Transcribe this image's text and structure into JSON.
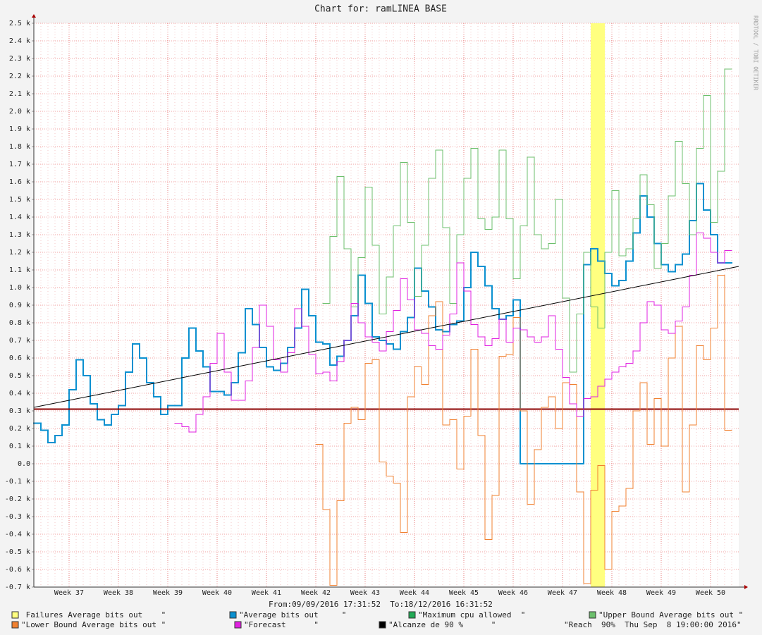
{
  "chart_data": {
    "type": "step",
    "title": "Chart for: ramLINEA BASE",
    "side_label": "RRDTOOL / TOBI OETIKER",
    "footer": "From:09/09/2016 17:31:52  To:18/12/2016 16:31:52",
    "legend_note": "\"Reach  90%  Thu Sep  8 19:00:00 2016\"",
    "grid": true,
    "categories": [
      null,
      null,
      null,
      null,
      null,
      "Week 37",
      null,
      null,
      null,
      null,
      null,
      null,
      "Week 38",
      null,
      null,
      null,
      null,
      null,
      null,
      "Week 39",
      null,
      null,
      null,
      null,
      null,
      null,
      "Week 40",
      null,
      null,
      null,
      null,
      null,
      null,
      "Week 41",
      null,
      null,
      null,
      null,
      null,
      null,
      "Week 42",
      null,
      null,
      null,
      null,
      null,
      null,
      "Week 43",
      null,
      null,
      null,
      null,
      null,
      null,
      "Week 44",
      null,
      null,
      null,
      null,
      null,
      null,
      "Week 45",
      null,
      null,
      null,
      null,
      null,
      null,
      "Week 46",
      null,
      null,
      null,
      null,
      null,
      null,
      "Week 47",
      null,
      null,
      null,
      null,
      null,
      null,
      "Week 48",
      null,
      null,
      null,
      null,
      null,
      null,
      "Week 49",
      null,
      null,
      null,
      null,
      null,
      null,
      "Week 50",
      null,
      null,
      null
    ],
    "ylim": [
      -0.7,
      2.5
    ],
    "yticks": [
      {
        "value": -0.7,
        "label": "-0.7 k"
      },
      {
        "value": -0.6,
        "label": "-0.6 k"
      },
      {
        "value": -0.5,
        "label": "-0.5 k"
      },
      {
        "value": -0.4,
        "label": "-0.4 k"
      },
      {
        "value": -0.3,
        "label": "-0.3 k"
      },
      {
        "value": -0.2,
        "label": "-0.2 k"
      },
      {
        "value": -0.1,
        "label": "-0.1 k"
      },
      {
        "value": 0,
        "label": "0.0"
      },
      {
        "value": 0.1,
        "label": "0.1 k"
      },
      {
        "value": 0.2,
        "label": "0.2 k"
      },
      {
        "value": 0.3,
        "label": "0.3 k"
      },
      {
        "value": 0.4,
        "label": "0.4 k"
      },
      {
        "value": 0.5,
        "label": "0.5 k"
      },
      {
        "value": 0.6,
        "label": "0.6 k"
      },
      {
        "value": 0.7,
        "label": "0.7 k"
      },
      {
        "value": 0.8,
        "label": "0.8 k"
      },
      {
        "value": 0.9,
        "label": "0.9 k"
      },
      {
        "value": 1.0,
        "label": "1.0 k"
      },
      {
        "value": 1.1,
        "label": "1.1 k"
      },
      {
        "value": 1.2,
        "label": "1.2 k"
      },
      {
        "value": 1.3,
        "label": "1.3 k"
      },
      {
        "value": 1.4,
        "label": "1.4 k"
      },
      {
        "value": 1.5,
        "label": "1.5 k"
      },
      {
        "value": 1.6,
        "label": "1.6 k"
      },
      {
        "value": 1.7,
        "label": "1.7 k"
      },
      {
        "value": 1.8,
        "label": "1.8 k"
      },
      {
        "value": 1.9,
        "label": "1.9 k"
      },
      {
        "value": 2.0,
        "label": "2.0 k"
      },
      {
        "value": 2.1,
        "label": "2.1 k"
      },
      {
        "value": 2.2,
        "label": "2.2 k"
      },
      {
        "value": 2.3,
        "label": "2.3 k"
      },
      {
        "value": 2.4,
        "label": "2.4 k"
      },
      {
        "value": 2.5,
        "label": "2.5 k"
      }
    ],
    "series": [
      {
        "name": " Failures Average bits out    \"",
        "color": "#ffff80",
        "kind": "tick",
        "values": [
          null,
          null,
          null,
          null,
          null,
          null,
          null,
          null,
          null,
          null,
          null,
          null,
          null,
          null,
          null,
          null,
          null,
          null,
          null,
          null,
          null,
          null,
          null,
          null,
          null,
          null,
          null,
          null,
          null,
          null,
          null,
          null,
          null,
          null,
          null,
          null,
          null,
          null,
          null,
          null,
          null,
          null,
          null,
          null,
          null,
          null,
          null,
          null,
          null,
          null,
          null,
          null,
          null,
          null,
          null,
          null,
          null,
          null,
          null,
          null,
          null,
          null,
          null,
          null,
          null,
          null,
          null,
          null,
          null,
          null,
          null,
          null,
          null,
          null,
          null,
          null,
          null,
          null,
          null,
          1,
          1,
          null,
          null,
          null,
          null,
          null,
          null,
          null,
          null,
          null,
          null,
          null,
          null,
          null,
          null,
          null,
          null,
          null,
          null,
          null
        ]
      },
      {
        "name": "\"Average bits out     \"",
        "color": "#0a90d0",
        "width": 2,
        "values": [
          0.23,
          0.19,
          0.12,
          0.16,
          0.22,
          0.42,
          0.59,
          0.5,
          0.34,
          0.25,
          0.22,
          0.28,
          0.33,
          0.52,
          0.68,
          0.6,
          0.46,
          0.38,
          0.28,
          0.33,
          0.33,
          0.6,
          0.77,
          0.64,
          0.55,
          0.41,
          0.41,
          0.39,
          0.46,
          0.63,
          0.88,
          0.79,
          0.66,
          0.55,
          0.53,
          0.57,
          0.66,
          0.77,
          0.99,
          0.84,
          0.69,
          0.68,
          0.56,
          0.61,
          0.7,
          0.84,
          1.07,
          0.91,
          0.72,
          0.7,
          0.68,
          0.65,
          0.75,
          0.83,
          1.11,
          0.98,
          0.89,
          0.76,
          0.75,
          0.79,
          0.81,
          1.0,
          1.2,
          1.12,
          1.01,
          0.88,
          0.82,
          0.84,
          0.93,
          0,
          0,
          0,
          0,
          0,
          0,
          0,
          0,
          0,
          1.13,
          1.22,
          1.15,
          1.08,
          1.01,
          1.04,
          1.15,
          1.31,
          1.52,
          1.4,
          1.25,
          1.13,
          1.09,
          1.13,
          1.19,
          1.38,
          1.59,
          1.44,
          1.3,
          1.14,
          1.14,
          null
        ]
      },
      {
        "name": "\"Maximum cpu allowed  \"",
        "color": "#22aa55",
        "line_color": "#8b0000",
        "width": 2,
        "hrule": 0.31
      },
      {
        "name": "\"Upper Bound Average bits out \"",
        "color": "#6cbf6c",
        "width": 1,
        "values": [
          null,
          null,
          null,
          null,
          null,
          null,
          null,
          null,
          null,
          null,
          null,
          null,
          null,
          null,
          null,
          null,
          null,
          null,
          null,
          null,
          null,
          null,
          null,
          null,
          null,
          null,
          null,
          null,
          null,
          null,
          null,
          null,
          null,
          null,
          null,
          null,
          null,
          null,
          null,
          null,
          null,
          0.91,
          1.29,
          1.63,
          1.22,
          0.89,
          1.17,
          1.57,
          1.24,
          0.85,
          1.06,
          1.35,
          1.71,
          1.37,
          0.95,
          1.24,
          1.62,
          1.78,
          1.34,
          0.91,
          1.3,
          1.62,
          1.79,
          1.39,
          1.33,
          1.4,
          1.78,
          1.39,
          1.05,
          1.35,
          1.74,
          1.3,
          1.22,
          1.25,
          1.5,
          0.94,
          0.52,
          0.85,
          1.2,
          0.89,
          0.77,
          1.2,
          1.55,
          1.18,
          1.22,
          1.39,
          1.64,
          1.47,
          1.11,
          1.25,
          1.52,
          1.83,
          1.59,
          1.3,
          1.79,
          2.09,
          1.37,
          1.66,
          2.24,
          null
        ]
      },
      {
        "name": "\"Lower Bound Average bits out \"",
        "color": "#f08030",
        "width": 1,
        "values": [
          null,
          null,
          null,
          null,
          null,
          null,
          null,
          null,
          null,
          null,
          null,
          null,
          null,
          null,
          null,
          null,
          null,
          null,
          null,
          null,
          null,
          null,
          null,
          null,
          null,
          null,
          null,
          null,
          null,
          null,
          null,
          null,
          null,
          null,
          null,
          null,
          null,
          null,
          null,
          null,
          0.11,
          -0.26,
          -0.69,
          -0.21,
          0.23,
          0.32,
          0.25,
          0.57,
          0.59,
          0.01,
          -0.07,
          -0.11,
          -0.39,
          0.38,
          0.55,
          0.45,
          0.84,
          0.92,
          0.22,
          0.25,
          -0.03,
          0.27,
          0.65,
          0.16,
          -0.43,
          -0.18,
          0.61,
          0.62,
          0.83,
          0.3,
          -0.23,
          0.08,
          0.32,
          0.38,
          0.2,
          0.46,
          0.45,
          -0.16,
          -0.68,
          -0.15,
          -0.01,
          -0.6,
          -0.27,
          -0.24,
          -0.14,
          0.3,
          0.46,
          0.11,
          0.37,
          0.1,
          0.6,
          0.78,
          -0.16,
          0.22,
          0.67,
          0.59,
          0.77,
          1.07,
          0.19,
          null
        ]
      },
      {
        "name": "\"Forecast      \"",
        "color": "#e020e0",
        "width": 1,
        "values": [
          null,
          null,
          null,
          null,
          null,
          null,
          null,
          null,
          null,
          null,
          null,
          null,
          null,
          null,
          null,
          null,
          null,
          null,
          null,
          null,
          0.23,
          0.21,
          0.18,
          0.28,
          0.38,
          0.57,
          0.74,
          0.52,
          0.36,
          0.36,
          0.47,
          0.66,
          0.9,
          0.78,
          0.59,
          0.52,
          0.63,
          0.88,
          0.78,
          0.62,
          0.51,
          0.52,
          0.47,
          0.58,
          0.7,
          0.91,
          0.8,
          0.72,
          0.69,
          0.64,
          0.75,
          0.87,
          1.05,
          0.93,
          0.76,
          0.74,
          0.67,
          0.65,
          0.73,
          0.85,
          1.14,
          0.98,
          0.79,
          0.72,
          0.67,
          0.71,
          0.82,
          0.69,
          0.77,
          0.76,
          0.72,
          0.69,
          0.72,
          0.84,
          0.65,
          0.49,
          0.34,
          0.27,
          0.37,
          0.38,
          0.44,
          0.48,
          0.52,
          0.55,
          0.57,
          0.64,
          0.8,
          0.92,
          0.9,
          0.76,
          0.74,
          0.81,
          0.89,
          1.07,
          1.31,
          1.28,
          1.2,
          1.14,
          1.21,
          null
        ]
      },
      {
        "name": "\"Alcanze de 90 %      \"",
        "color": "#000000",
        "width": 1,
        "connect_gaps": true,
        "values": [
          0.32,
          null,
          null,
          null,
          null,
          null,
          null,
          null,
          null,
          null,
          null,
          null,
          null,
          null,
          null,
          null,
          null,
          null,
          null,
          null,
          null,
          null,
          null,
          null,
          null,
          null,
          null,
          null,
          null,
          null,
          null,
          null,
          null,
          null,
          null,
          null,
          null,
          null,
          null,
          null,
          null,
          null,
          null,
          null,
          null,
          null,
          null,
          null,
          null,
          null,
          null,
          null,
          null,
          null,
          null,
          null,
          null,
          null,
          null,
          null,
          null,
          null,
          null,
          null,
          null,
          null,
          null,
          null,
          null,
          null,
          null,
          null,
          null,
          null,
          null,
          null,
          null,
          null,
          null,
          null,
          null,
          null,
          null,
          null,
          null,
          null,
          null,
          null,
          null,
          null,
          null,
          null,
          null,
          null,
          null,
          null,
          null,
          null,
          null,
          1.12
        ]
      }
    ]
  }
}
